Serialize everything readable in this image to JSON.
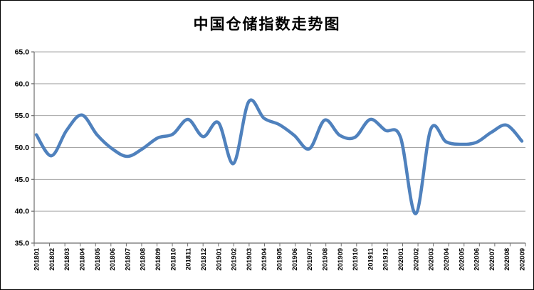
{
  "chart_data": {
    "type": "line",
    "title": "中国仓储指数走势图",
    "categories": [
      "201801",
      "201802",
      "201803",
      "201804",
      "201805",
      "201806",
      "201807",
      "201808",
      "201809",
      "201810",
      "201811",
      "201812",
      "201901",
      "201902",
      "201903",
      "201904",
      "201905",
      "201906",
      "201907",
      "201908",
      "201909",
      "201910",
      "201911",
      "201912",
      "202001",
      "202002",
      "202003",
      "202004",
      "202005",
      "202006",
      "202007",
      "202008",
      "202009"
    ],
    "values": [
      52.0,
      48.7,
      52.7,
      55.1,
      52.0,
      49.8,
      48.6,
      49.8,
      51.5,
      52.1,
      54.4,
      51.7,
      53.9,
      47.5,
      57.2,
      54.6,
      53.6,
      51.9,
      49.8,
      54.3,
      51.9,
      51.6,
      54.4,
      52.7,
      51.6,
      39.6,
      52.9,
      50.9,
      50.5,
      50.8,
      52.4,
      53.5,
      51.0
    ],
    "xlabel": "",
    "ylabel": "",
    "ylim": [
      35.0,
      65.0
    ],
    "ytick_step": 5.0,
    "ytick_labels": [
      "65.0",
      "60.0",
      "55.0",
      "50.0",
      "45.0",
      "40.0",
      "35.0"
    ],
    "grid": "horizontal",
    "legend": "none",
    "smooth_line": true,
    "colors": {
      "line": "#4F81BD",
      "gridline": "#A6A6A6",
      "axis": "#6E6E6E",
      "text": "#000000",
      "background": "#FFFFFF"
    }
  }
}
